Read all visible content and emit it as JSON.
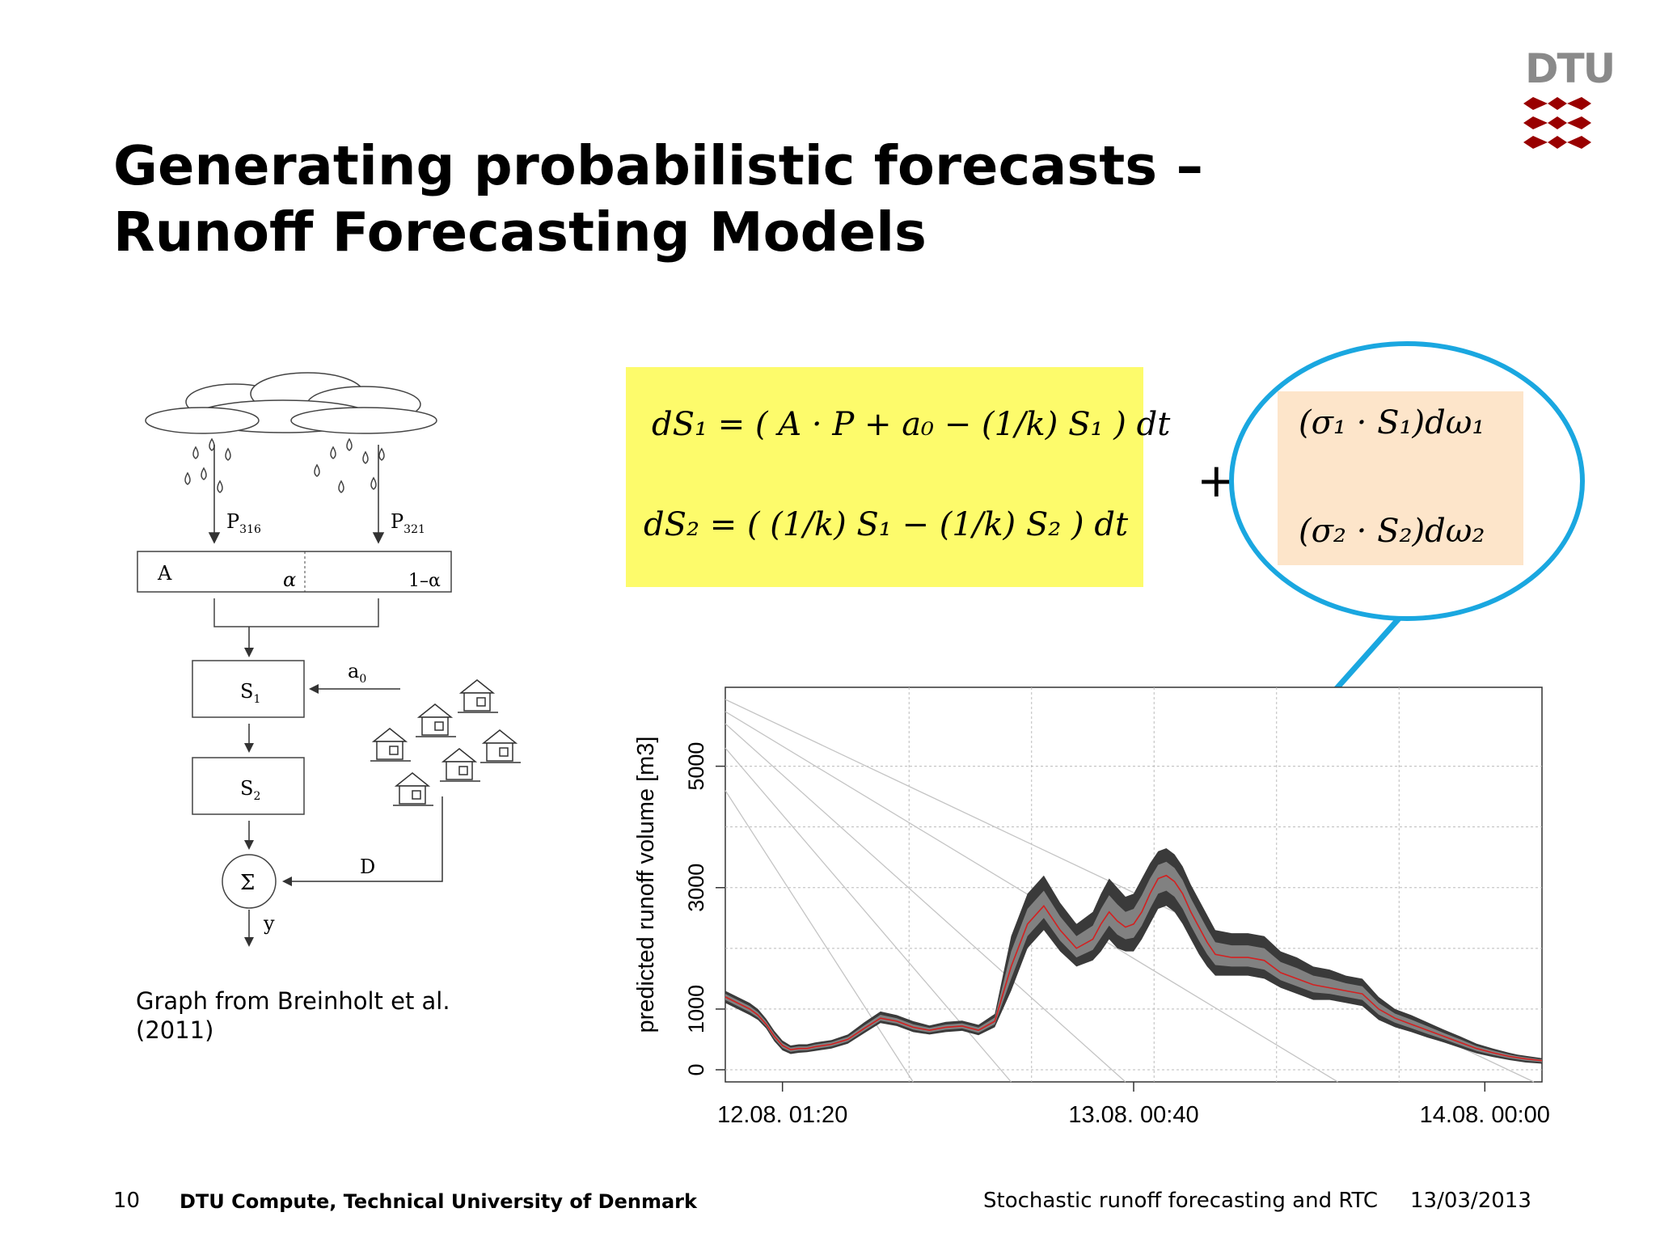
{
  "title": {
    "line1": "Generating probabilistic forecasts –",
    "line2": "Runoff Forecasting Models"
  },
  "logo": {
    "text": "DTU",
    "color": "#990000"
  },
  "equations": {
    "box_color": "#fdfb6b",
    "eq1": "dS₁ = ( A · P + a₀ − (1/k) S₁ ) dt",
    "eq2": "dS₂ = ( (1/k) S₁ − (1/k) S₂ ) dt",
    "plus": "+",
    "noise_box_color": "#fde5ca",
    "noise1": "(σ₁ · S₁)dω₁",
    "noise2": "(σ₂ · S₂)dω₂",
    "callout_color": "#1aa7e0"
  },
  "diagram": {
    "p1": "P",
    "p1_sub": "316",
    "p2": "P",
    "p2_sub": "321",
    "a_label": "A",
    "alpha": "α",
    "one_minus_alpha": "1–α",
    "a0": "a",
    "a0_sub": "0",
    "s1": "S",
    "s1_sub": "1",
    "s2": "S",
    "s2_sub": "2",
    "sigma": "Σ",
    "d": "D",
    "y": "y"
  },
  "caption": "Graph from Breinholt et al. (2011)",
  "footer": {
    "page": "10",
    "org": "DTU Compute, Technical University of Denmark",
    "topic": "Stochastic runoff forecasting and RTC",
    "date": "13/03/2013"
  },
  "chart_data": {
    "type": "area",
    "ylabel": "predicted runoff volume [m3]",
    "ytick_labels": [
      "0",
      "1000",
      "3000",
      "5000"
    ],
    "yticks": [
      0,
      1000,
      2000,
      3000,
      4000,
      5000
    ],
    "xtick_labels": [
      "12.08. 01:20",
      "13.08. 00:40",
      "14.08. 00:00"
    ],
    "ylim": [
      -200,
      6300
    ],
    "xlim": [
      0,
      100
    ],
    "xticks": [
      7,
      50,
      93
    ],
    "grid": true,
    "band_color": "#3a3a3a",
    "median_color": "#d42020",
    "observed_color": "#000000",
    "series": [
      {
        "x": [
          0,
          3,
          4,
          5,
          6,
          7,
          8,
          9,
          10,
          11,
          12,
          13,
          15,
          17,
          19,
          21,
          23,
          25,
          27,
          29,
          31,
          33,
          35,
          37,
          39,
          41,
          43,
          45,
          46,
          47,
          48,
          49,
          50,
          51,
          52,
          53,
          54,
          55,
          56,
          57,
          58,
          59,
          60,
          62,
          64,
          66,
          68,
          70,
          72,
          74,
          76,
          78,
          80,
          82,
          84,
          86,
          88,
          90,
          92,
          94,
          96,
          97,
          98,
          100
        ],
        "median": [
          1200,
          1000,
          900,
          750,
          550,
          400,
          330,
          350,
          350,
          380,
          400,
          420,
          500,
          680,
          850,
          800,
          700,
          650,
          700,
          720,
          650,
          800,
          1700,
          2400,
          2700,
          2300,
          2000,
          2150,
          2400,
          2600,
          2450,
          2350,
          2400,
          2600,
          2900,
          3150,
          3200,
          3100,
          2900,
          2600,
          2350,
          2100,
          1900,
          1850,
          1850,
          1800,
          1600,
          1500,
          1400,
          1350,
          1300,
          1250,
          1000,
          850,
          750,
          650,
          550,
          450,
          350,
          280,
          220,
          200,
          180,
          150
        ],
        "lower": [
          1100,
          900,
          820,
          680,
          470,
          320,
          260,
          280,
          290,
          310,
          330,
          350,
          430,
          600,
          770,
          720,
          620,
          580,
          620,
          640,
          570,
          700,
          1300,
          2000,
          2300,
          1950,
          1700,
          1800,
          1950,
          2150,
          2000,
          1950,
          1950,
          2150,
          2400,
          2650,
          2700,
          2600,
          2400,
          2150,
          1900,
          1700,
          1550,
          1550,
          1550,
          1500,
          1350,
          1250,
          1150,
          1150,
          1100,
          1050,
          820,
          700,
          620,
          530,
          450,
          360,
          270,
          210,
          160,
          140,
          120,
          100
        ],
        "upper": [
          1300,
          1100,
          1000,
          840,
          640,
          480,
          400,
          420,
          420,
          450,
          470,
          490,
          580,
          780,
          960,
          900,
          800,
          730,
          790,
          810,
          740,
          920,
          2200,
          2900,
          3200,
          2750,
          2400,
          2600,
          2900,
          3150,
          3000,
          2850,
          2900,
          3150,
          3400,
          3600,
          3650,
          3550,
          3350,
          3050,
          2800,
          2550,
          2300,
          2250,
          2250,
          2200,
          1950,
          1850,
          1700,
          1650,
          1550,
          1500,
          1200,
          1000,
          900,
          780,
          660,
          550,
          430,
          350,
          280,
          250,
          230,
          190
        ]
      }
    ],
    "decay_lines": [
      {
        "x": [
          0,
          23
        ],
        "y": [
          4600,
          -200
        ]
      },
      {
        "x": [
          0,
          35
        ],
        "y": [
          5300,
          -200
        ]
      },
      {
        "x": [
          0,
          49
        ],
        "y": [
          5700,
          -200
        ]
      },
      {
        "x": [
          0,
          75
        ],
        "y": [
          5900,
          -200
        ]
      },
      {
        "x": [
          0,
          99
        ],
        "y": [
          6100,
          -200
        ]
      }
    ]
  }
}
